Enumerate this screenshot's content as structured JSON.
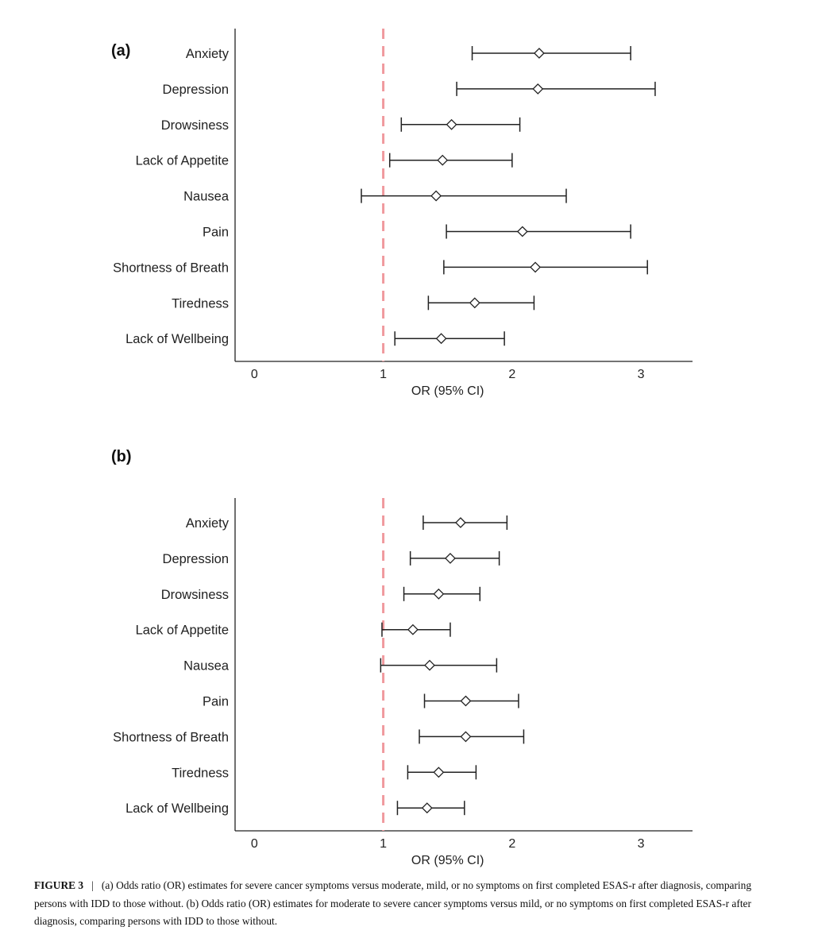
{
  "caption": {
    "tag": "FIGURE 3",
    "separator": "|",
    "text": "(a) Odds ratio (OR) estimates for severe cancer symptoms versus moderate, mild, or no symptoms on first completed ESAS-r after diagnosis, comparing persons with IDD to those without. (b) Odds ratio (OR) estimates for moderate to severe cancer symptoms versus mild, or no symptoms on first completed ESAS-r after diagnosis, comparing persons with IDD to those without."
  },
  "colors": {
    "reference_line": "#f0999e",
    "marks": "#222222"
  },
  "chart_data": [
    {
      "type": "forest",
      "panel_label": "(a)",
      "xlabel": "OR (95% CI)",
      "xlim": [
        -0.15,
        3.4
      ],
      "xticks": [
        0,
        1,
        2,
        3
      ],
      "reference_value": 1,
      "reference_style": "dashed",
      "grid": false,
      "categories": [
        "Anxiety",
        "Depression",
        "Drowsiness",
        "Lack of Appetite",
        "Nausea",
        "Pain",
        "Shortness of Breath",
        "Tiredness",
        "Lack of Wellbeing"
      ],
      "estimates": [
        2.21,
        2.2,
        1.53,
        1.46,
        1.41,
        2.08,
        2.18,
        1.71,
        1.45
      ],
      "lower": [
        1.69,
        1.57,
        1.14,
        1.05,
        0.83,
        1.49,
        1.47,
        1.35,
        1.09
      ],
      "upper": [
        2.92,
        3.11,
        2.06,
        2.0,
        2.42,
        2.92,
        3.05,
        2.17,
        1.94
      ]
    },
    {
      "type": "forest",
      "panel_label": "(b)",
      "xlabel": "OR (95% CI)",
      "xlim": [
        -0.15,
        3.4
      ],
      "xticks": [
        0,
        1,
        2,
        3
      ],
      "reference_value": 1,
      "reference_style": "dashed",
      "grid": false,
      "categories": [
        "Anxiety",
        "Depression",
        "Drowsiness",
        "Lack of Appetite",
        "Nausea",
        "Pain",
        "Shortness of Breath",
        "Tiredness",
        "Lack of Wellbeing"
      ],
      "estimates": [
        1.6,
        1.52,
        1.43,
        1.23,
        1.36,
        1.64,
        1.64,
        1.43,
        1.34
      ],
      "lower": [
        1.31,
        1.21,
        1.16,
        0.99,
        0.98,
        1.32,
        1.28,
        1.19,
        1.11
      ],
      "upper": [
        1.96,
        1.9,
        1.75,
        1.52,
        1.88,
        2.05,
        2.09,
        1.72,
        1.63
      ]
    }
  ]
}
